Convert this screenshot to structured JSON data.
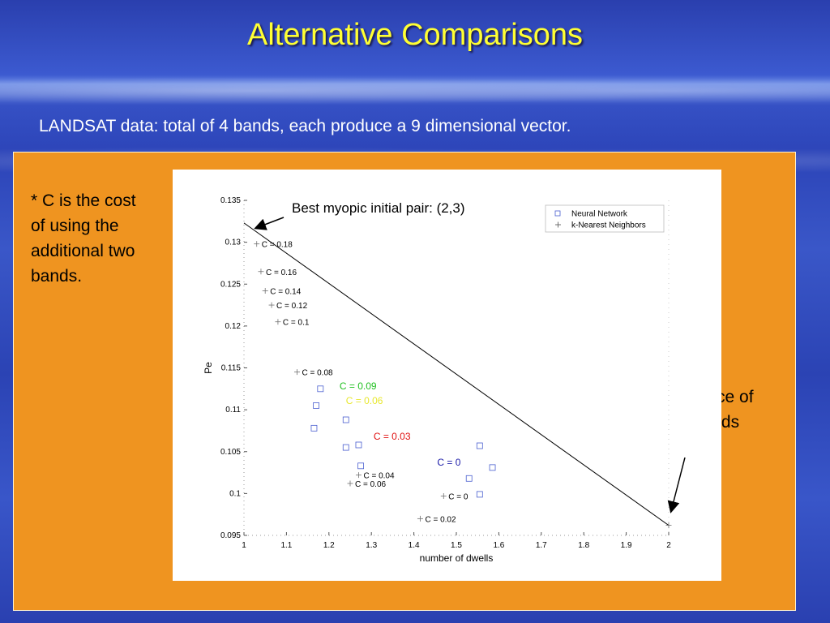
{
  "slide": {
    "title": "Alternative Comparisons",
    "subtitle": "LANDSAT data: total of 4 bands, each produce a 9 dimensional vector.",
    "note": "* C is the cost of using the additional two bands.",
    "perf_note": "Performance of all four bands",
    "colors": {
      "title": "#ffff33",
      "panel": "#ef9420",
      "arrow": "#000000"
    }
  },
  "chart_data": {
    "type": "scatter",
    "title": "",
    "xlabel": "number of dwells",
    "ylabel": "Pe",
    "xlim": [
      1,
      2
    ],
    "ylim": [
      0.095,
      0.135
    ],
    "xticks": [
      "1",
      "1.1",
      "1.2",
      "1.3",
      "1.4",
      "1.5",
      "1.6",
      "1.7",
      "1.8",
      "1.9",
      "2"
    ],
    "yticks": [
      "0.095",
      "0.1",
      "0.105",
      "0.11",
      "0.115",
      "0.12",
      "0.125",
      "0.13",
      "0.135"
    ],
    "legend": {
      "placement": "top-right"
    },
    "series": [
      {
        "name": "Neural Network",
        "marker": "square",
        "color": "#4a5fd0",
        "points": [
          {
            "x": 1.17,
            "y": 0.1105
          },
          {
            "x": 1.18,
            "y": 0.1125
          },
          {
            "x": 1.165,
            "y": 0.1078
          },
          {
            "x": 1.24,
            "y": 0.1088
          },
          {
            "x": 1.24,
            "y": 0.1055
          },
          {
            "x": 1.27,
            "y": 0.1058
          },
          {
            "x": 1.275,
            "y": 0.1033
          },
          {
            "x": 1.53,
            "y": 0.1018
          },
          {
            "x": 1.555,
            "y": 0.1057
          },
          {
            "x": 1.585,
            "y": 0.1031
          },
          {
            "x": 1.555,
            "y": 0.0999
          }
        ]
      },
      {
        "name": "k-Nearest Neighbors",
        "marker": "plus",
        "color": "#707070",
        "points": [
          {
            "x": 1.03,
            "y": 0.1298
          },
          {
            "x": 1.04,
            "y": 0.1265
          },
          {
            "x": 1.05,
            "y": 0.1242
          },
          {
            "x": 1.065,
            "y": 0.1225
          },
          {
            "x": 1.08,
            "y": 0.1205
          },
          {
            "x": 1.125,
            "y": 0.1145
          },
          {
            "x": 1.27,
            "y": 0.1022
          },
          {
            "x": 1.25,
            "y": 0.1012
          },
          {
            "x": 1.47,
            "y": 0.0997
          },
          {
            "x": 1.415,
            "y": 0.097
          },
          {
            "x": 2.0,
            "y": 0.0962
          }
        ]
      }
    ],
    "reference_line": {
      "x": [
        1.0,
        2.0
      ],
      "y": [
        0.1323,
        0.0962
      ]
    },
    "annotations": [
      {
        "text": "C = 0.18",
        "x": 1.03,
        "y": 0.1298,
        "color": "#000000"
      },
      {
        "text": "C = 0.16",
        "x": 1.04,
        "y": 0.1265,
        "color": "#000000"
      },
      {
        "text": "C = 0.14",
        "x": 1.05,
        "y": 0.1242,
        "color": "#000000"
      },
      {
        "text": "C = 0.12",
        "x": 1.065,
        "y": 0.1225,
        "color": "#000000"
      },
      {
        "text": "C = 0.1",
        "x": 1.08,
        "y": 0.1205,
        "color": "#000000"
      },
      {
        "text": "C = 0.08",
        "x": 1.125,
        "y": 0.1145,
        "color": "#000000"
      },
      {
        "text": "C = 0.09",
        "x": 1.225,
        "y": 0.1128,
        "color": "#22c022"
      },
      {
        "text": "C = 0.06",
        "x": 1.24,
        "y": 0.1111,
        "color": "#e8e830"
      },
      {
        "text": "C = 0.03",
        "x": 1.305,
        "y": 0.1068,
        "color": "#e01010"
      },
      {
        "text": "C = 0",
        "x": 1.455,
        "y": 0.1037,
        "color": "#1a1aa8"
      },
      {
        "text": "C = 0.04",
        "x": 1.27,
        "y": 0.1022,
        "color": "#000000"
      },
      {
        "text": "C = 0.06",
        "x": 1.25,
        "y": 0.1012,
        "color": "#000000"
      },
      {
        "text": "C = 0",
        "x": 1.47,
        "y": 0.0997,
        "color": "#000000"
      },
      {
        "text": "C = 0.02",
        "x": 1.415,
        "y": 0.097,
        "color": "#000000"
      }
    ],
    "callout": {
      "text": "Best myopic initial pair: (2,3)"
    }
  }
}
